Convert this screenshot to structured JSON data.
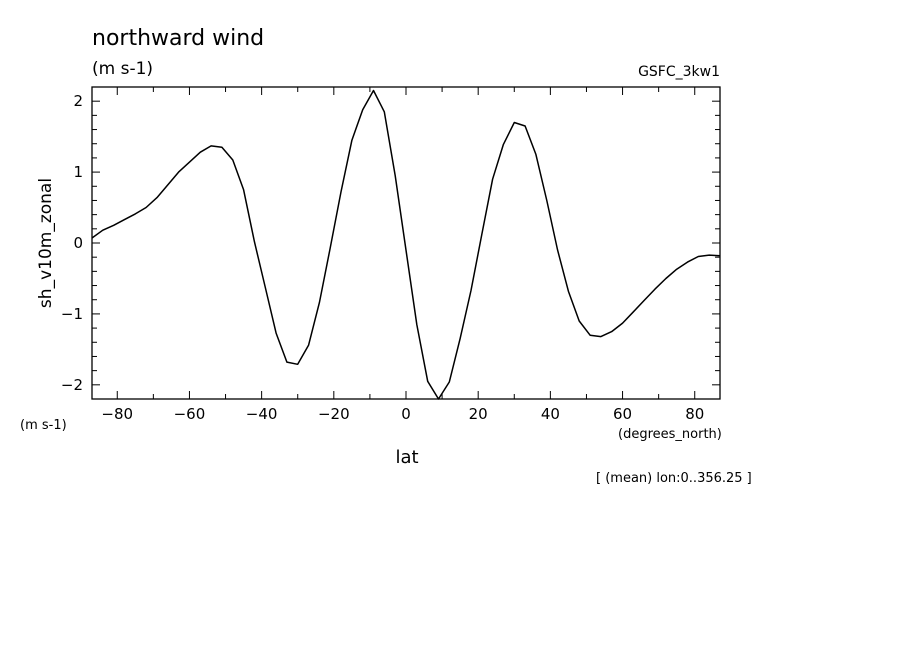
{
  "chart_data": {
    "type": "line",
    "title": "northward wind",
    "units_label": "(m s-1)",
    "source_label": "GSFC_3kw1",
    "ylabel": "sh_v10m_zonal",
    "y_units": "(m s-1)",
    "xlabel": "lat",
    "x_units": "(degrees_north)",
    "footnote": "[ (mean) lon:0..356.25 ]",
    "xlim": [
      -87,
      87
    ],
    "ylim": [
      -2.2,
      2.2
    ],
    "x_ticks": [
      -80,
      -60,
      -40,
      -20,
      0,
      20,
      40,
      60,
      80
    ],
    "y_ticks": [
      -2,
      -1,
      0,
      1,
      2
    ],
    "grid": false,
    "series": [
      {
        "x": [
          -87,
          -84,
          -81,
          -78,
          -75,
          -72,
          -69,
          -66,
          -63,
          -60,
          -57,
          -54,
          -51,
          -48,
          -45,
          -42,
          -39,
          -36,
          -33,
          -30,
          -27,
          -24,
          -21,
          -18,
          -15,
          -12,
          -9,
          -6,
          -3,
          0,
          3,
          6,
          9,
          12,
          15,
          18,
          21,
          24,
          27,
          30,
          33,
          36,
          39,
          42,
          45,
          48,
          51,
          54,
          57,
          60,
          63,
          66,
          69,
          72,
          75,
          78,
          81,
          84,
          87
        ],
        "values": [
          0.07,
          0.18,
          0.25,
          0.33,
          0.41,
          0.5,
          0.64,
          0.82,
          1.0,
          1.14,
          1.28,
          1.37,
          1.35,
          1.17,
          0.75,
          0.02,
          -0.62,
          -1.27,
          -1.68,
          -1.71,
          -1.44,
          -0.84,
          -0.07,
          0.72,
          1.45,
          1.88,
          2.15,
          1.85,
          0.95,
          -0.1,
          -1.15,
          -1.95,
          -2.2,
          -1.96,
          -1.35,
          -0.67,
          0.12,
          0.9,
          1.39,
          1.7,
          1.65,
          1.25,
          0.6,
          -0.1,
          -0.68,
          -1.1,
          -1.3,
          -1.32,
          -1.25,
          -1.13,
          -0.97,
          -0.81,
          -0.65,
          -0.5,
          -0.37,
          -0.27,
          -0.19,
          -0.17,
          -0.18
        ]
      }
    ]
  }
}
